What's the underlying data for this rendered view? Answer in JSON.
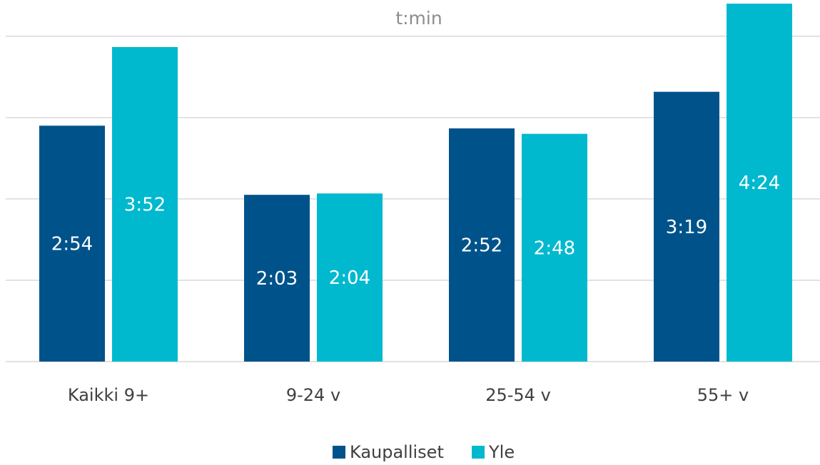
{
  "chart_data": {
    "type": "bar",
    "title": "",
    "unit_label": "t:min",
    "xlabel": "",
    "ylabel": "",
    "categories": [
      "Kaikki 9+",
      "9-24 v",
      "25-54 v",
      "55+ v"
    ],
    "series": [
      {
        "name": "Kaupalliset",
        "color": "#00538a",
        "values_minutes": [
          174,
          123,
          172,
          199
        ],
        "labels": [
          "2:54",
          "2:03",
          "2:52",
          "3:19"
        ]
      },
      {
        "name": "Yle",
        "color": "#00b9cf",
        "values_minutes": [
          232,
          124,
          168,
          264
        ],
        "labels": [
          "3:52",
          "2:04",
          "2:48",
          "4:24"
        ]
      }
    ],
    "ylim_minutes": [
      0,
      264
    ],
    "y_axis_visible": false,
    "gridlines": true,
    "gridline_interval_minutes": 60,
    "legend_position": "bottom"
  }
}
